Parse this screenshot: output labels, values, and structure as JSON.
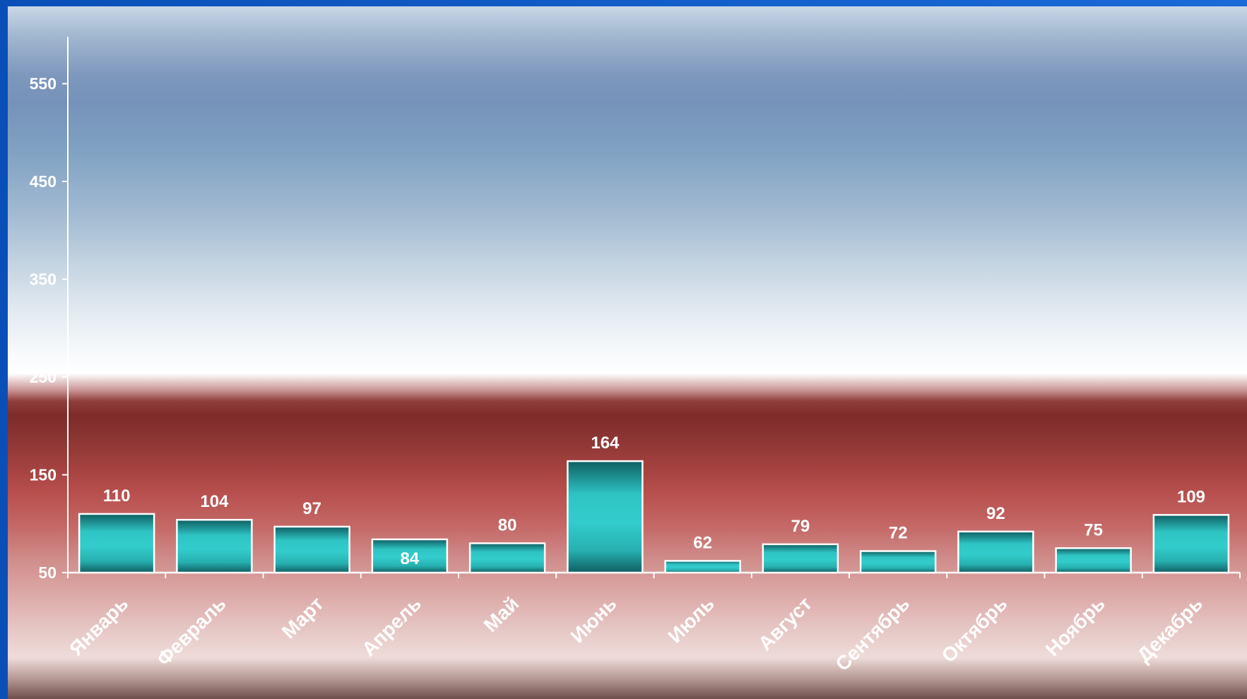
{
  "chart_data": {
    "type": "bar",
    "title": "",
    "xlabel": "",
    "ylabel": "",
    "categories": [
      "Январь",
      "Февраль",
      "Март",
      "Апрель",
      "Май",
      "Июнь",
      "Июль",
      "Август",
      "Сентябрь",
      "Октябрь",
      "Ноябрь",
      "Декабрь"
    ],
    "values": [
      110,
      104,
      97,
      84,
      80,
      164,
      62,
      79,
      72,
      92,
      75,
      109
    ],
    "ylim": [
      50,
      600
    ],
    "yticks": [
      50,
      150,
      250,
      350,
      450,
      550
    ],
    "grid": false,
    "legend": "none",
    "colors": {
      "bar_mid": "#33cccc",
      "bar_edge": "#0f5f62",
      "bar_border": "#ffffff",
      "text": "#ffffff"
    }
  }
}
